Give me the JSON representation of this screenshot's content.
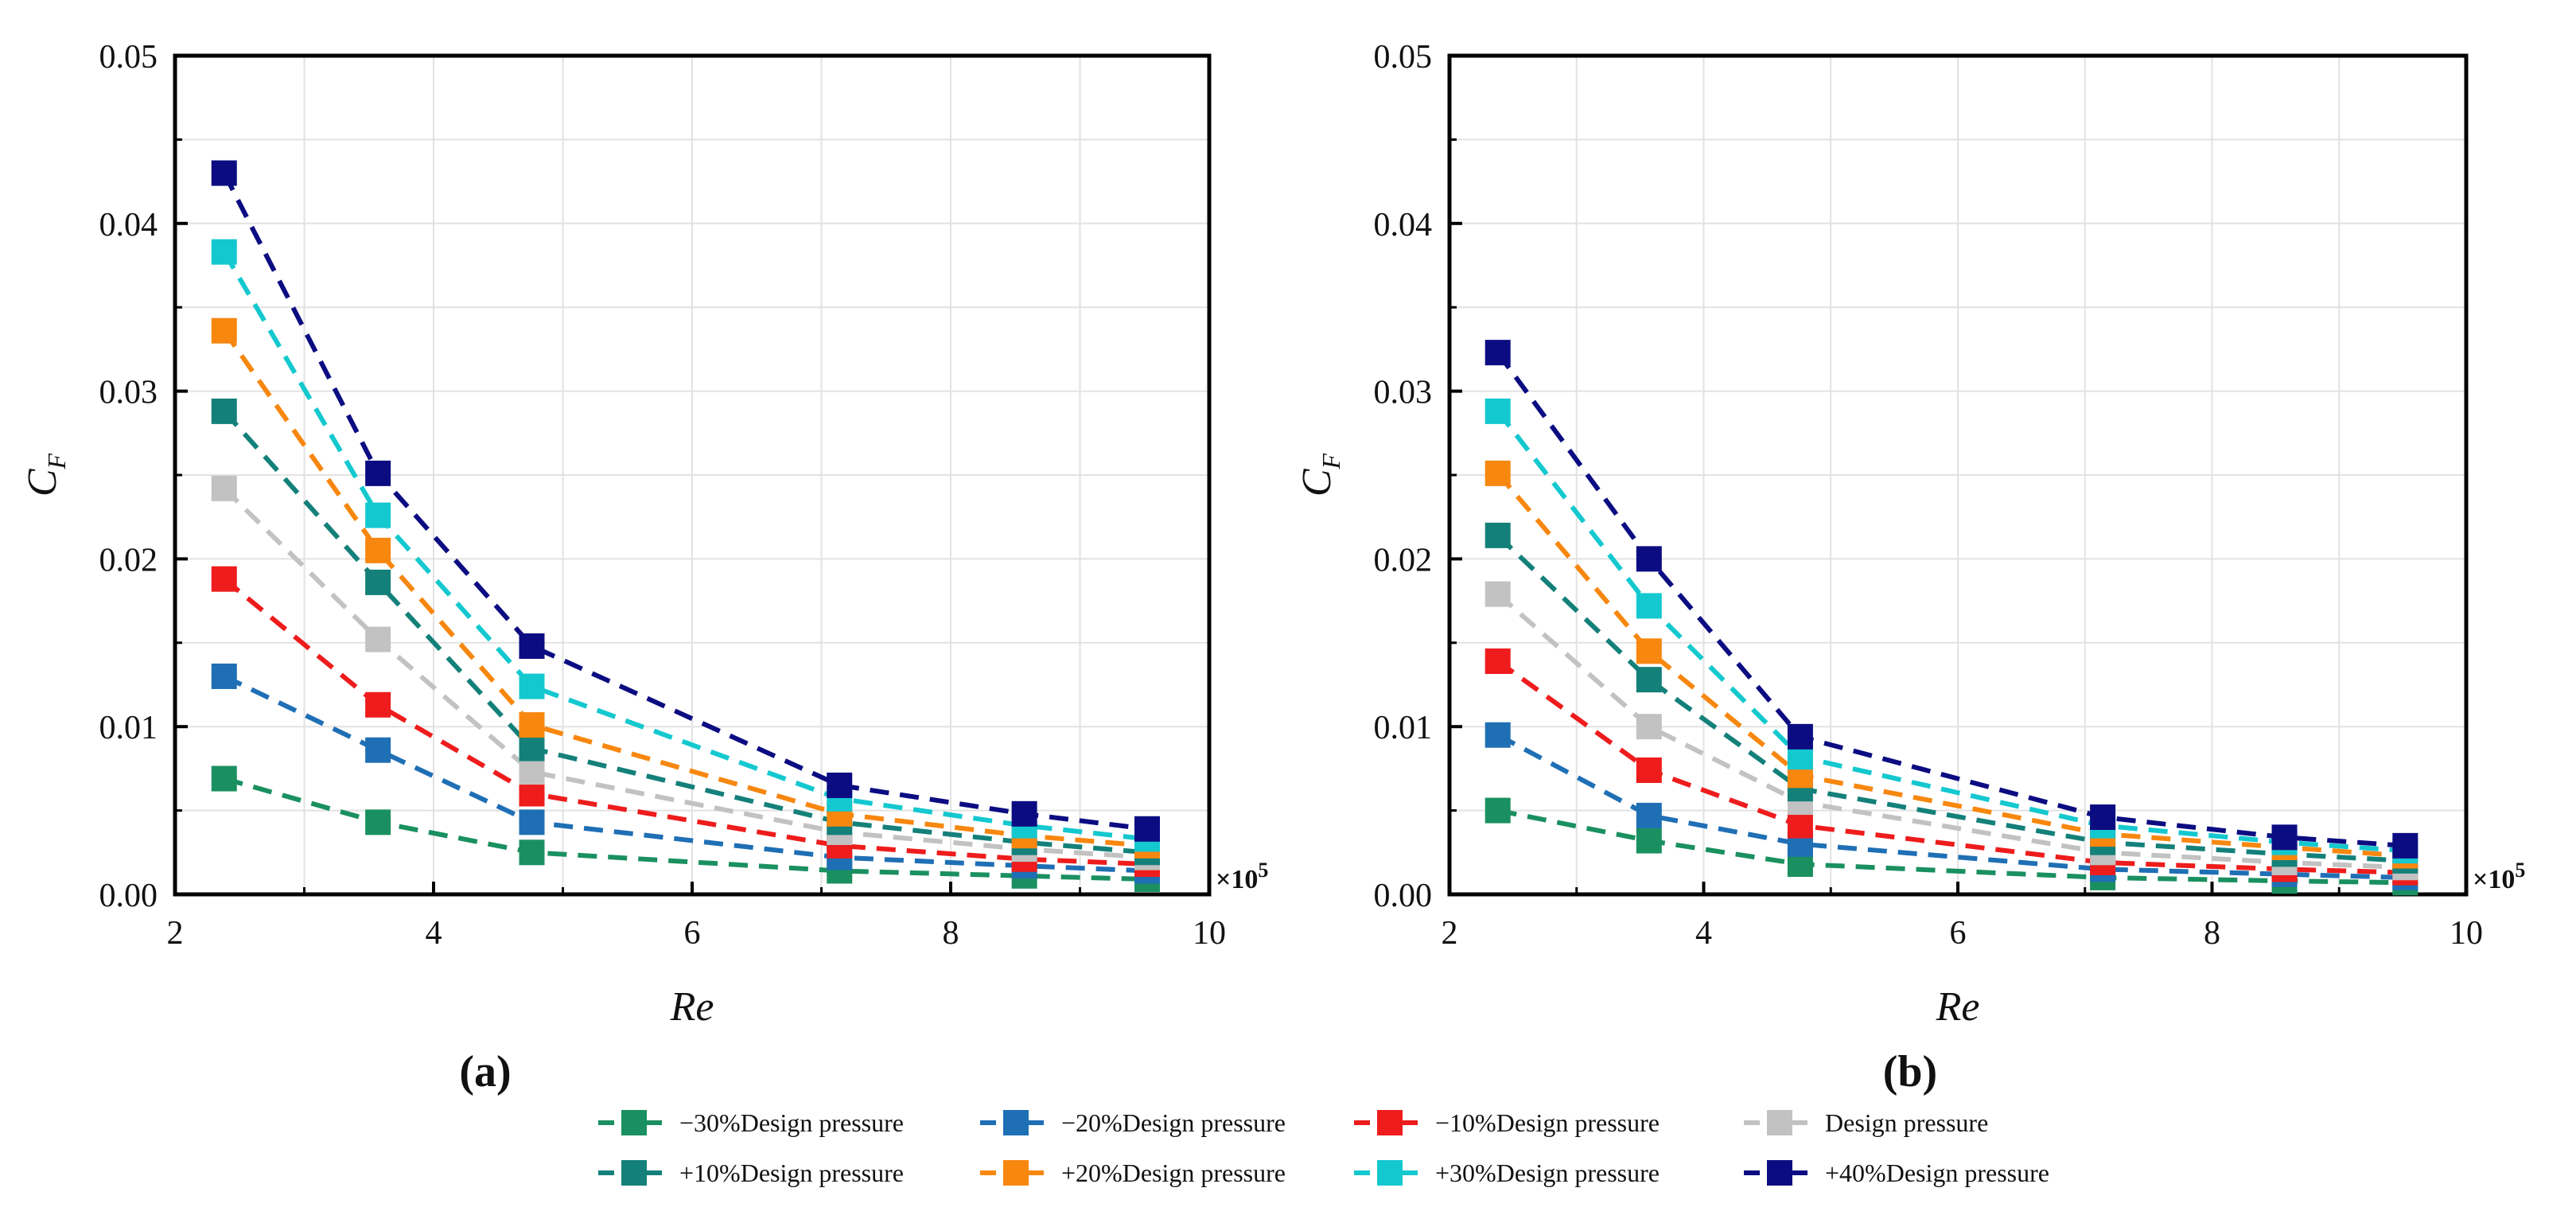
{
  "chart_data": [
    {
      "type": "line",
      "panel_label": "(a)",
      "xlabel": "Re",
      "ylabel_main": "C",
      "ylabel_sub": "F",
      "x_multiplier": "×10",
      "x_multiplier_exp": "5",
      "xlim": [
        2,
        10
      ],
      "ylim": [
        0,
        0.05
      ],
      "xticks": [
        "2",
        "4",
        "6",
        "8",
        "10"
      ],
      "yticks": [
        "0.00",
        "0.01",
        "0.02",
        "0.03",
        "0.04",
        "0.05"
      ],
      "grid": true,
      "x": [
        2.38,
        3.57,
        4.76,
        7.14,
        8.57,
        9.52
      ],
      "series": [
        {
          "name": "−30%Design pressure",
          "values": [
            0.0069,
            0.0043,
            0.0025,
            0.0014,
            0.0011,
            0.0009
          ]
        },
        {
          "name": "−20%Design pressure",
          "values": [
            0.013,
            0.0086,
            0.0043,
            0.0022,
            0.0017,
            0.0014
          ]
        },
        {
          "name": "−10%Design pressure",
          "values": [
            0.0188,
            0.0113,
            0.006,
            0.0029,
            0.0021,
            0.0018
          ]
        },
        {
          "name": "Design pressure",
          "values": [
            0.0242,
            0.0152,
            0.0073,
            0.0037,
            0.0027,
            0.0022
          ]
        },
        {
          "name": "+10%Design pressure",
          "values": [
            0.0288,
            0.0186,
            0.0087,
            0.0043,
            0.0031,
            0.0025
          ]
        },
        {
          "name": "+20%Design pressure",
          "values": [
            0.0336,
            0.0205,
            0.0101,
            0.0048,
            0.0035,
            0.0029
          ]
        },
        {
          "name": "+30%Design pressure",
          "values": [
            0.0383,
            0.0226,
            0.0124,
            0.0057,
            0.0041,
            0.0033
          ]
        },
        {
          "name": "+40%Design pressure",
          "values": [
            0.043,
            0.0251,
            0.0148,
            0.0065,
            0.0048,
            0.0039
          ]
        }
      ]
    },
    {
      "type": "line",
      "panel_label": "(b)",
      "xlabel": "Re",
      "ylabel_main": "C",
      "ylabel_sub": "F",
      "x_multiplier": "×10",
      "x_multiplier_exp": "5",
      "xlim": [
        2,
        10
      ],
      "ylim": [
        0,
        0.05
      ],
      "xticks": [
        "2",
        "4",
        "6",
        "8",
        "10"
      ],
      "yticks": [
        "0.00",
        "0.01",
        "0.02",
        "0.03",
        "0.04",
        "0.05"
      ],
      "grid": true,
      "x": [
        2.38,
        3.57,
        4.76,
        7.14,
        8.57,
        9.52
      ],
      "series": [
        {
          "name": "−30%Design pressure",
          "values": [
            0.005,
            0.0032,
            0.0018,
            0.001,
            0.0008,
            0.0007
          ]
        },
        {
          "name": "−20%Design pressure",
          "values": [
            0.0095,
            0.0047,
            0.003,
            0.0015,
            0.0012,
            0.001
          ]
        },
        {
          "name": "−10%Design pressure",
          "values": [
            0.0139,
            0.0074,
            0.0041,
            0.0019,
            0.0015,
            0.0013
          ]
        },
        {
          "name": "Design pressure",
          "values": [
            0.0179,
            0.01,
            0.0055,
            0.0025,
            0.0019,
            0.0016
          ]
        },
        {
          "name": "+10%Design pressure",
          "values": [
            0.0214,
            0.0128,
            0.0063,
            0.0031,
            0.0024,
            0.002
          ]
        },
        {
          "name": "+20%Design pressure",
          "values": [
            0.0251,
            0.0145,
            0.0071,
            0.0036,
            0.0028,
            0.0023
          ]
        },
        {
          "name": "+30%Design pressure",
          "values": [
            0.0288,
            0.0172,
            0.0082,
            0.0041,
            0.0031,
            0.0026
          ]
        },
        {
          "name": "+40%Design pressure",
          "values": [
            0.0323,
            0.02,
            0.0094,
            0.0046,
            0.0034,
            0.0029
          ]
        }
      ]
    }
  ],
  "series_colors": [
    "#1a9060",
    "#1f6fb5",
    "#ee1c1c",
    "#c2c2c2",
    "#14807a",
    "#f7870f",
    "#14c8cf",
    "#0c0c82"
  ],
  "legend": [
    "−30%Design pressure",
    "−20%Design pressure",
    "−10%Design pressure",
    "Design pressure",
    "+10%Design pressure",
    "+20%Design pressure",
    "+30%Design pressure",
    "+40%Design pressure"
  ]
}
